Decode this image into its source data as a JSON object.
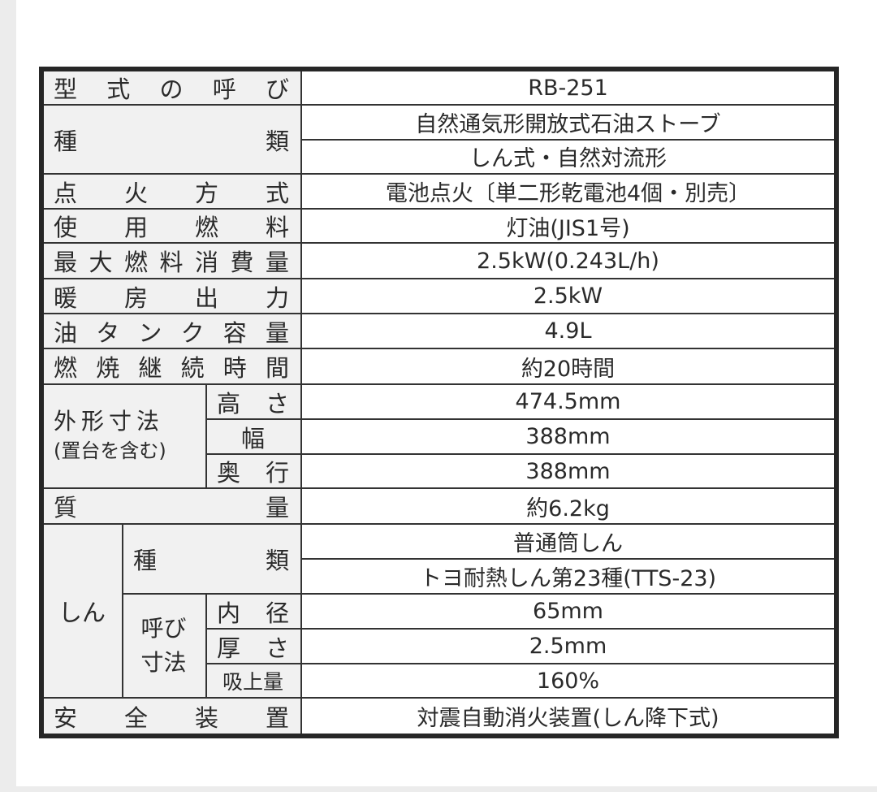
{
  "rows": [
    {
      "label": [
        "型",
        "式",
        "の",
        "呼",
        "び"
      ],
      "values": [
        "RB-251"
      ]
    },
    {
      "label": [
        "種",
        "類"
      ],
      "values": [
        "自然通気形開放式石油ストーブ",
        "しん式・自然対流形"
      ]
    },
    {
      "label": [
        "点",
        "火",
        "方",
        "式"
      ],
      "values": [
        "電池点火〔単二形乾電池4個・別売〕"
      ]
    },
    {
      "label": [
        "使",
        "用",
        "燃",
        "料"
      ],
      "values": [
        "灯油(JIS1号)"
      ]
    },
    {
      "label": [
        "最",
        "大",
        "燃",
        "料",
        "消",
        "費",
        "量"
      ],
      "values": [
        "2.5kW(0.243L/h)"
      ]
    },
    {
      "label": [
        "暖",
        "房",
        "出",
        "力"
      ],
      "values": [
        "2.5kW"
      ]
    },
    {
      "label": [
        "油",
        "タ",
        "ン",
        "ク",
        "容",
        "量"
      ],
      "values": [
        "4.9L"
      ]
    },
    {
      "label": [
        "燃",
        "焼",
        "継",
        "続",
        "時",
        "間"
      ],
      "values": [
        "約20時間"
      ]
    }
  ],
  "dimensions": {
    "label_line1": "外形寸法",
    "label_line2": "(置台を含む)",
    "items": [
      {
        "label": [
          "高",
          "さ"
        ],
        "value": "474.5mm"
      },
      {
        "label": [
          "幅"
        ],
        "value": "388mm"
      },
      {
        "label": [
          "奥",
          "行"
        ],
        "value": "388mm"
      }
    ]
  },
  "mass": {
    "label": [
      "質",
      "量"
    ],
    "value": "約6.2kg"
  },
  "wick": {
    "label": "しん",
    "type_label": [
      "種",
      "類"
    ],
    "type_values": [
      "普通筒しん",
      "トヨ耐熱しん第23種(TTS-23)"
    ],
    "size_label_line1": "呼び",
    "size_label_line2": "寸法",
    "items": [
      {
        "label": [
          "内",
          "径"
        ],
        "value": "65mm"
      },
      {
        "label": [
          "厚",
          "さ"
        ],
        "value": "2.5mm"
      },
      {
        "label": [
          "吸上量"
        ],
        "value": "160%"
      }
    ]
  },
  "safety": {
    "label": [
      "安",
      "全",
      "装",
      "置"
    ],
    "value": "対震自動消火装置(しん降下式)"
  }
}
